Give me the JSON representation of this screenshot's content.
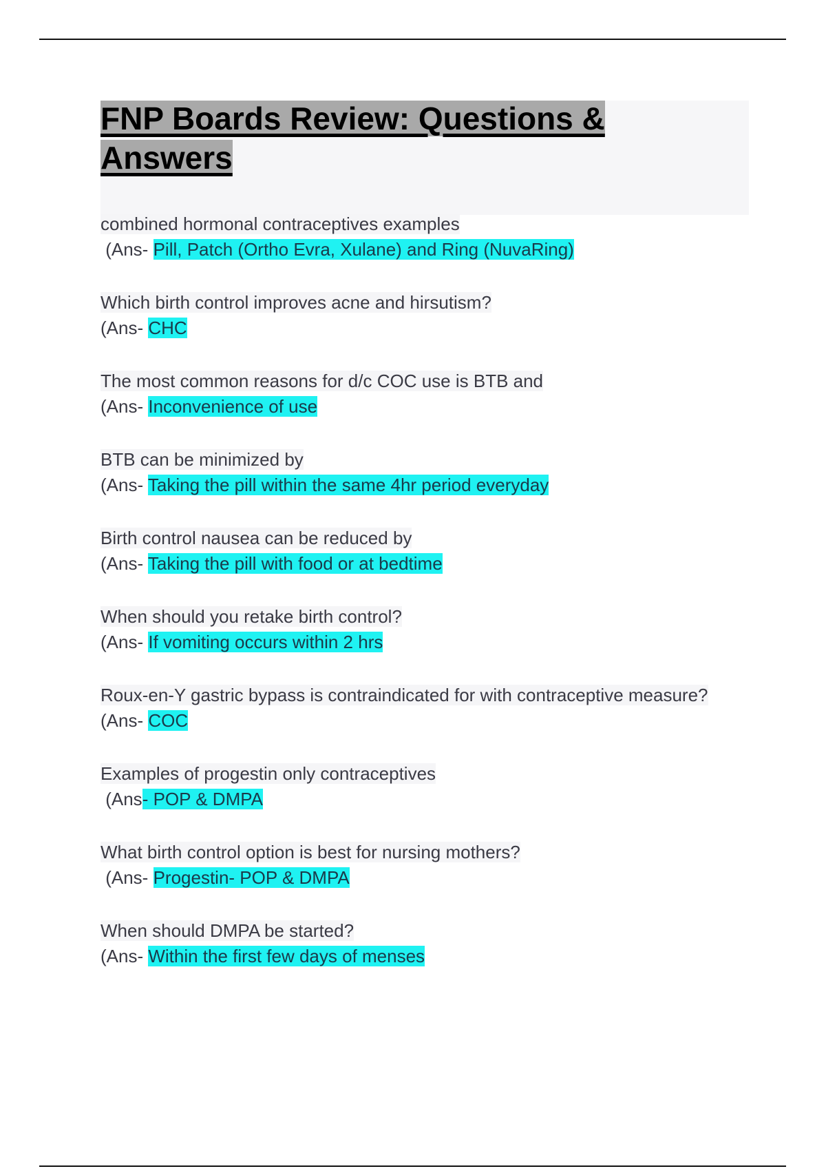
{
  "title": "FNP Boards Review: Questions & Answers",
  "highlight_color": "#1ff2f2",
  "items": [
    {
      "question": "combined hormonal contraceptives examples",
      "prefix": " (Ans- ",
      "answer": "Pill, Patch (Ortho Evra, Xulane) and Ring (NuvaRing)"
    },
    {
      "question": "Which birth control improves acne and hirsutism?",
      "prefix": "(Ans- ",
      "answer": "CHC"
    },
    {
      "question": "The most common reasons for d/c COC use is BTB and",
      "prefix": "(Ans- ",
      "answer": "Inconvenience of use"
    },
    {
      "question": "BTB can be minimized by",
      "prefix": "(Ans- ",
      "answer": "Taking the pill within the same 4hr period everyday"
    },
    {
      "question": "Birth control nausea can be reduced by",
      "prefix": "(Ans- ",
      "answer": "Taking the pill with food or at bedtime"
    },
    {
      "question": "When should you retake birth control?",
      "prefix": "(Ans- ",
      "answer": "If vomiting occurs within 2 hrs"
    },
    {
      "question": "Roux-en-Y gastric bypass is contraindicated for with contraceptive measure?",
      "prefix": "(Ans- ",
      "answer": "COC"
    },
    {
      "question": "Examples of progestin only contraceptives",
      "prefix": " (Ans",
      "answer": "- POP & DMPA"
    },
    {
      "question": "What birth control option is best for nursing mothers?",
      "prefix": " (Ans- ",
      "answer": "Progestin- POP & DMPA"
    },
    {
      "question": "When should DMPA be started?",
      "prefix": "(Ans- ",
      "answer": "Within the first few days of menses"
    }
  ]
}
